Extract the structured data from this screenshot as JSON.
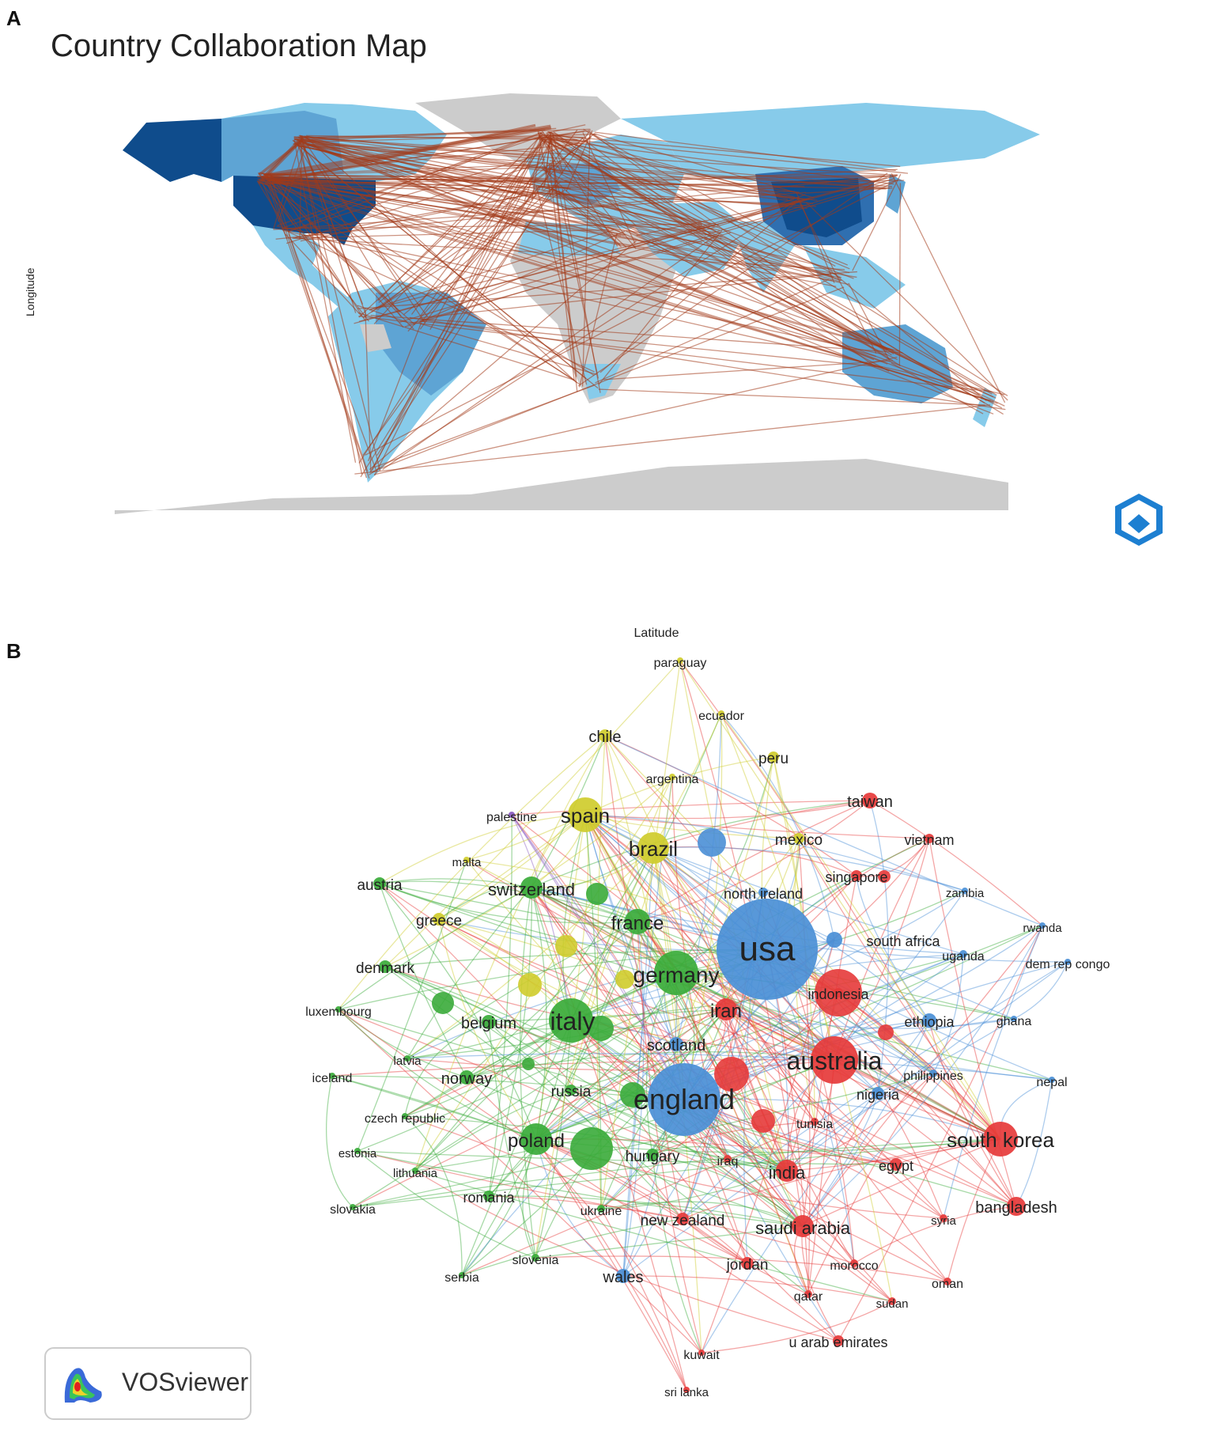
{
  "panels": {
    "a": "A",
    "b": "B"
  },
  "map": {
    "title": "Country Collaboration Map",
    "y_axis_label": "Longitude",
    "x_axis_label": "Latitude",
    "colors": {
      "land_none": "#cccccc",
      "light": "#87cbea",
      "medium": "#5ea4d4",
      "dark": "#2f6fb0",
      "darkest": "#0f4c8c",
      "edge": "#a33a1a"
    }
  },
  "network": {
    "cluster_colors": {
      "red": "#e63a3a",
      "green": "#3aab3a",
      "blue": "#4a8fd6",
      "yellow": "#cfcc2c",
      "purple": "#8a5ac0"
    },
    "nodes": [
      {
        "label": "usa",
        "c": "blue",
        "size": 64,
        "font": 44
      },
      {
        "label": "england",
        "c": "blue",
        "size": 46,
        "font": 36
      },
      {
        "label": "australia",
        "c": "red",
        "size": 30,
        "font": 32
      },
      {
        "label": "italy",
        "c": "green",
        "size": 28,
        "font": 32
      },
      {
        "label": "germany",
        "c": "green",
        "size": 28,
        "font": 28
      },
      {
        "label": "spain",
        "c": "yellow",
        "size": 22,
        "font": 26
      },
      {
        "label": "south korea",
        "c": "red",
        "size": 22,
        "font": 26
      },
      {
        "label": "brazil",
        "c": "yellow",
        "size": 20,
        "font": 26
      },
      {
        "label": "poland",
        "c": "green",
        "size": 20,
        "font": 24
      },
      {
        "label": "france",
        "c": "green",
        "size": 16,
        "font": 24
      },
      {
        "label": "switzerland",
        "c": "green",
        "size": 14,
        "font": 22
      },
      {
        "label": "iran",
        "c": "red",
        "size": 14,
        "font": 24
      },
      {
        "label": "india",
        "c": "red",
        "size": 14,
        "font": 22
      },
      {
        "label": "saudi arabia",
        "c": "red",
        "size": 14,
        "font": 22
      },
      {
        "label": "bangladesh",
        "c": "red",
        "size": 12,
        "font": 20
      },
      {
        "label": "taiwan",
        "c": "red",
        "size": 10,
        "font": 20
      },
      {
        "label": "south africa",
        "c": "blue",
        "size": 10,
        "font": 18
      },
      {
        "label": "ethiopia",
        "c": "blue",
        "size": 9,
        "font": 18
      },
      {
        "label": "scotland",
        "c": "blue",
        "size": 9,
        "font": 20
      },
      {
        "label": "wales",
        "c": "blue",
        "size": 9,
        "font": 20
      },
      {
        "label": "norway",
        "c": "green",
        "size": 9,
        "font": 20
      },
      {
        "label": "belgium",
        "c": "green",
        "size": 9,
        "font": 20
      },
      {
        "label": "austria",
        "c": "green",
        "size": 8,
        "font": 19
      },
      {
        "label": "denmark",
        "c": "green",
        "size": 8,
        "font": 19
      },
      {
        "label": "greece",
        "c": "yellow",
        "size": 8,
        "font": 19
      },
      {
        "label": "chile",
        "c": "yellow",
        "size": 8,
        "font": 20
      },
      {
        "label": "mexico",
        "c": "yellow",
        "size": 7,
        "font": 19
      },
      {
        "label": "peru",
        "c": "yellow",
        "size": 7,
        "font": 19
      },
      {
        "label": "hungary",
        "c": "green",
        "size": 8,
        "font": 19
      },
      {
        "label": "russia",
        "c": "green",
        "size": 7,
        "font": 19
      },
      {
        "label": "romania",
        "c": "green",
        "size": 7,
        "font": 18
      },
      {
        "label": "nigeria",
        "c": "blue",
        "size": 8,
        "font": 18
      },
      {
        "label": "jordan",
        "c": "red",
        "size": 8,
        "font": 19
      },
      {
        "label": "new zealand",
        "c": "red",
        "size": 8,
        "font": 19
      },
      {
        "label": "egypt",
        "c": "red",
        "size": 8,
        "font": 18
      },
      {
        "label": "u arab emirates",
        "c": "red",
        "size": 7,
        "font": 18
      },
      {
        "label": "singapore",
        "c": "red",
        "size": 7,
        "font": 18
      },
      {
        "label": "vietnam",
        "c": "red",
        "size": 6,
        "font": 18
      },
      {
        "label": "indonesia",
        "c": "red",
        "size": 6,
        "font": 18
      },
      {
        "label": "north ireland",
        "c": "blue",
        "size": 6,
        "font": 18
      },
      {
        "label": "tunisia",
        "c": "red",
        "size": 5,
        "font": 16
      },
      {
        "label": "iraq",
        "c": "red",
        "size": 5,
        "font": 16
      },
      {
        "label": "philippines",
        "c": "blue",
        "size": 5,
        "font": 16
      },
      {
        "label": "ukraine",
        "c": "green",
        "size": 5,
        "font": 16
      },
      {
        "label": "slovenia",
        "c": "green",
        "size": 5,
        "font": 16
      },
      {
        "label": "morocco",
        "c": "red",
        "size": 5,
        "font": 16
      },
      {
        "label": "qatar",
        "c": "red",
        "size": 5,
        "font": 16
      },
      {
        "label": "sudan",
        "c": "red",
        "size": 5,
        "font": 15
      },
      {
        "label": "oman",
        "c": "red",
        "size": 5,
        "font": 16
      },
      {
        "label": "syria",
        "c": "red",
        "size": 5,
        "font": 15
      },
      {
        "label": "uganda",
        "c": "blue",
        "size": 5,
        "font": 16
      },
      {
        "label": "zambia",
        "c": "blue",
        "size": 4,
        "font": 15
      },
      {
        "label": "rwanda",
        "c": "blue",
        "size": 4,
        "font": 15
      },
      {
        "label": "dem rep congo",
        "c": "blue",
        "size": 4,
        "font": 16
      },
      {
        "label": "ghana",
        "c": "blue",
        "size": 4,
        "font": 16
      },
      {
        "label": "nepal",
        "c": "blue",
        "size": 4,
        "font": 16
      },
      {
        "label": "kuwait",
        "c": "red",
        "size": 4,
        "font": 16
      },
      {
        "label": "sri lanka",
        "c": "red",
        "size": 4,
        "font": 15
      },
      {
        "label": "paraguay",
        "c": "yellow",
        "size": 4,
        "font": 16
      },
      {
        "label": "ecuador",
        "c": "yellow",
        "size": 4,
        "font": 16
      },
      {
        "label": "argentina",
        "c": "yellow",
        "size": 4,
        "font": 16
      },
      {
        "label": "palestine",
        "c": "purple",
        "size": 4,
        "font": 16
      },
      {
        "label": "malta",
        "c": "yellow",
        "size": 4,
        "font": 15
      },
      {
        "label": "luxembourg",
        "c": "green",
        "size": 4,
        "font": 16
      },
      {
        "label": "latvia",
        "c": "green",
        "size": 4,
        "font": 15
      },
      {
        "label": "iceland",
        "c": "green",
        "size": 4,
        "font": 16
      },
      {
        "label": "czech republic",
        "c": "green",
        "size": 4,
        "font": 16
      },
      {
        "label": "estonia",
        "c": "green",
        "size": 4,
        "font": 15
      },
      {
        "label": "lithuania",
        "c": "green",
        "size": 4,
        "font": 15
      },
      {
        "label": "slovakia",
        "c": "green",
        "size": 4,
        "font": 16
      },
      {
        "label": "serbia",
        "c": "green",
        "size": 4,
        "font": 16
      }
    ]
  },
  "vosviewer": {
    "label": "VOSviewer"
  }
}
